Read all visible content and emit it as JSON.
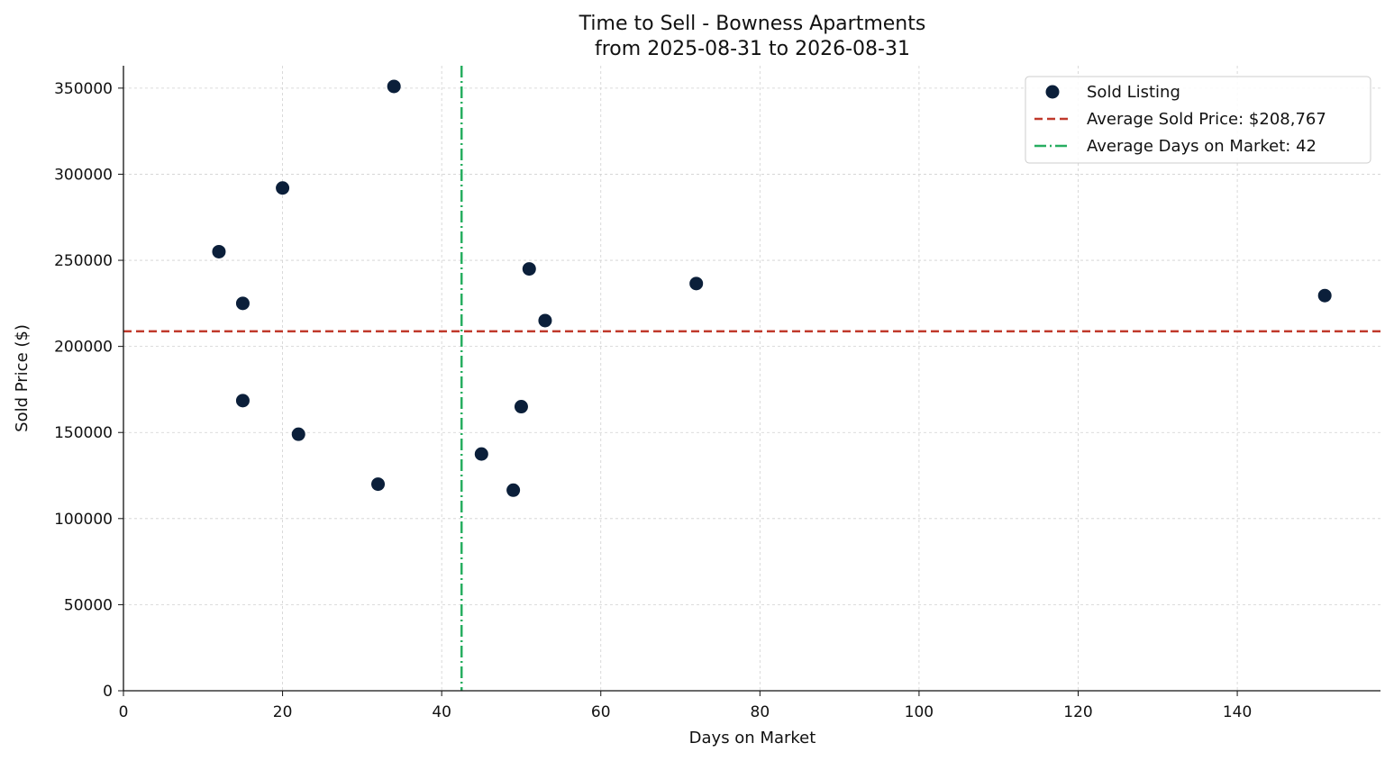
{
  "chart_data": {
    "type": "scatter",
    "title": "Time to Sell - Bowness Apartments",
    "subtitle": "from 2025-08-31 to 2026-08-31",
    "xlabel": "Days on Market",
    "ylabel": "Sold Price ($)",
    "xlim": [
      0,
      158
    ],
    "ylim": [
      0,
      363000
    ],
    "x_ticks": [
      0,
      20,
      40,
      60,
      80,
      100,
      120,
      140
    ],
    "y_ticks": [
      0,
      50000,
      100000,
      150000,
      200000,
      250000,
      300000,
      350000
    ],
    "grid": true,
    "legend_position": "top-right",
    "series": [
      {
        "name": "Sold Listing",
        "color": "#0b1f3a",
        "points": [
          {
            "x": 12,
            "y": 255000
          },
          {
            "x": 15,
            "y": 225000
          },
          {
            "x": 15,
            "y": 168500
          },
          {
            "x": 20,
            "y": 292000
          },
          {
            "x": 22,
            "y": 149000
          },
          {
            "x": 32,
            "y": 120000
          },
          {
            "x": 34,
            "y": 351000
          },
          {
            "x": 45,
            "y": 137500
          },
          {
            "x": 49,
            "y": 116500
          },
          {
            "x": 50,
            "y": 165000
          },
          {
            "x": 51,
            "y": 245000
          },
          {
            "x": 53,
            "y": 215000
          },
          {
            "x": 72,
            "y": 236500
          },
          {
            "x": 151,
            "y": 229500
          }
        ]
      }
    ],
    "reference_lines": [
      {
        "name": "Average Sold Price: $208,767",
        "orientation": "horizontal",
        "value": 208767,
        "color": "#c0392b",
        "style": "dashed"
      },
      {
        "name": "Average Days on Market: 42",
        "orientation": "vertical",
        "value": 42.5,
        "color": "#27ae60",
        "style": "dashdot"
      }
    ]
  }
}
